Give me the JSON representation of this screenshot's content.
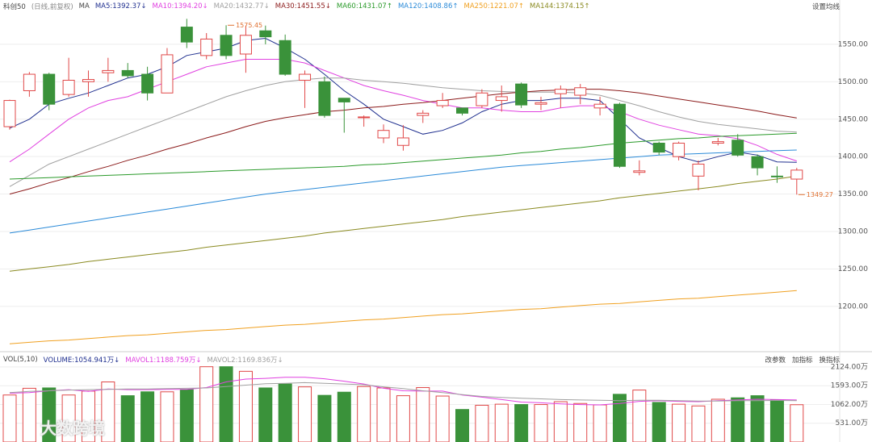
{
  "chart_data": [
    {
      "type": "candlestick",
      "title": "科创50",
      "subtitle": "(日线,前复权)",
      "ma_label": "MA",
      "settings_button": "设置均线",
      "open": [
        1440,
        1488,
        1510,
        1483,
        1500,
        1512,
        1515,
        1510,
        1485,
        1573,
        1535,
        1562,
        1537,
        1568,
        1555,
        1502,
        1500,
        1478,
        1452,
        1425,
        1415,
        1455,
        1468,
        1465,
        1468,
        1475,
        1497,
        1470,
        1484,
        1482,
        1465,
        1470,
        1379,
        1418,
        1400,
        1374,
        1418,
        1422,
        1400,
        1374,
        1370
      ],
      "high": [
        1476,
        1513,
        1512,
        1532,
        1515,
        1532,
        1525,
        1520,
        1545,
        1584,
        1565,
        1575.45,
        1575,
        1575,
        1563,
        1515,
        1507,
        1478,
        1455,
        1443,
        1442,
        1462,
        1485,
        1465,
        1490,
        1495,
        1499,
        1480,
        1495,
        1497,
        1480,
        1472,
        1395,
        1420,
        1420,
        1395,
        1425,
        1430,
        1403,
        1387,
        1385
      ],
      "low": [
        1436,
        1480,
        1462,
        1480,
        1480,
        1500,
        1505,
        1475,
        1485,
        1545,
        1530,
        1530,
        1512,
        1550,
        1508,
        1465,
        1452,
        1432,
        1440,
        1418,
        1408,
        1445,
        1465,
        1455,
        1465,
        1460,
        1465,
        1462,
        1465,
        1470,
        1455,
        1385,
        1375,
        1402,
        1395,
        1355,
        1415,
        1400,
        1375,
        1365,
        1349.27
      ],
      "close": [
        1475,
        1510,
        1470,
        1502,
        1503,
        1515,
        1508,
        1485,
        1536,
        1553,
        1557,
        1535,
        1562,
        1560,
        1510,
        1510,
        1455,
        1473,
        1453,
        1435,
        1425,
        1458,
        1475,
        1458,
        1485,
        1480,
        1469,
        1472,
        1490,
        1492,
        1470,
        1387,
        1381,
        1406,
        1418,
        1390,
        1420,
        1402,
        1385,
        1373,
        1382
      ],
      "up_color": "#e04848",
      "down_color": "#3a923a",
      "ylim": [
        1146,
        1593
      ],
      "yticks": [
        {
          "value": 1200,
          "label": "1200.00"
        },
        {
          "value": 1250,
          "label": "1250.00"
        },
        {
          "value": 1300,
          "label": "1300.00"
        },
        {
          "value": 1350,
          "label": "1350.00"
        },
        {
          "value": 1400,
          "label": "1400.00"
        },
        {
          "value": 1450,
          "label": "1450.00"
        },
        {
          "value": 1500,
          "label": "1500.00"
        },
        {
          "value": 1550,
          "label": "1550.00"
        }
      ],
      "grid": true,
      "annotations": [
        {
          "text": "1575.45",
          "value": 1575.45
        },
        {
          "text": "1349.27",
          "value": 1349.27
        }
      ],
      "series": [
        {
          "name": "MA5:1392.37",
          "trend": "↓",
          "color": "#1f2f8f",
          "values": [
            1438,
            1450,
            1470,
            1478,
            1485,
            1495,
            1505,
            1510,
            1520,
            1535,
            1540,
            1545,
            1555,
            1558,
            1545,
            1530,
            1510,
            1488,
            1470,
            1450,
            1440,
            1430,
            1435,
            1445,
            1460,
            1470,
            1475,
            1475,
            1478,
            1478,
            1475,
            1450,
            1425,
            1412,
            1400,
            1393,
            1400,
            1406,
            1402,
            1393,
            1392.37
          ]
        },
        {
          "name": "MA10:1394.20",
          "trend": "↓",
          "color": "#e040e0",
          "values": [
            1393,
            1410,
            1430,
            1450,
            1465,
            1475,
            1480,
            1490,
            1500,
            1510,
            1520,
            1525,
            1530,
            1530,
            1530,
            1525,
            1515,
            1505,
            1495,
            1488,
            1482,
            1475,
            1470,
            1465,
            1465,
            1462,
            1460,
            1460,
            1465,
            1468,
            1468,
            1460,
            1450,
            1442,
            1436,
            1430,
            1428,
            1424,
            1415,
            1403,
            1394.2
          ]
        },
        {
          "name": "MA20:1432.77",
          "trend": "↓",
          "color": "#a0a0a0",
          "values": [
            1360,
            1375,
            1390,
            1400,
            1410,
            1420,
            1430,
            1440,
            1450,
            1460,
            1470,
            1480,
            1488,
            1495,
            1500,
            1503,
            1505,
            1505,
            1502,
            1500,
            1498,
            1495,
            1492,
            1490,
            1488,
            1487,
            1486,
            1486,
            1486,
            1485,
            1482,
            1475,
            1468,
            1460,
            1453,
            1447,
            1443,
            1440,
            1437,
            1434,
            1432.77
          ]
        },
        {
          "name": "MA30:1451.55",
          "trend": "↓",
          "color": "#8b1a1a",
          "values": [
            1350,
            1357,
            1365,
            1372,
            1380,
            1387,
            1395,
            1402,
            1410,
            1417,
            1425,
            1432,
            1440,
            1447,
            1452,
            1456,
            1460,
            1462,
            1465,
            1467,
            1470,
            1472,
            1475,
            1478,
            1481,
            1484,
            1486,
            1488,
            1489,
            1490,
            1490,
            1488,
            1485,
            1481,
            1477,
            1473,
            1469,
            1465,
            1461,
            1456,
            1451.55
          ]
        },
        {
          "name": "MA60:1431.07",
          "trend": "↑",
          "color": "#2a9a2a",
          "values": [
            1370,
            1371,
            1372,
            1373,
            1374,
            1375,
            1376,
            1377,
            1378,
            1379,
            1380,
            1381,
            1382,
            1383,
            1384,
            1385,
            1386,
            1387,
            1389,
            1390,
            1392,
            1394,
            1396,
            1398,
            1400,
            1402,
            1405,
            1407,
            1410,
            1412,
            1415,
            1418,
            1420,
            1422,
            1424,
            1425,
            1427,
            1428,
            1429,
            1430,
            1431.07
          ]
        },
        {
          "name": "MA120:1408.86",
          "trend": "↑",
          "color": "#2a8ad8",
          "values": [
            1298,
            1302,
            1306,
            1310,
            1314,
            1318,
            1322,
            1326,
            1330,
            1334,
            1338,
            1342,
            1346,
            1350,
            1353,
            1356,
            1359,
            1362,
            1365,
            1368,
            1371,
            1374,
            1377,
            1380,
            1383,
            1386,
            1388,
            1390,
            1392,
            1394,
            1396,
            1398,
            1400,
            1402,
            1403,
            1404,
            1405,
            1406,
            1407,
            1408,
            1408.86
          ]
        },
        {
          "name": "MA250:1221.07",
          "trend": "↑",
          "color": "#f0a020",
          "values": [
            1150,
            1152,
            1154,
            1155,
            1157,
            1159,
            1161,
            1162,
            1164,
            1166,
            1168,
            1169,
            1171,
            1173,
            1175,
            1176,
            1178,
            1180,
            1182,
            1183,
            1185,
            1187,
            1189,
            1190,
            1192,
            1194,
            1196,
            1197,
            1199,
            1201,
            1203,
            1204,
            1206,
            1208,
            1210,
            1211,
            1213,
            1215,
            1217,
            1219,
            1221.07
          ]
        },
        {
          "name": "MA144:1374.15",
          "trend": "↑",
          "color": "#8a8a20",
          "values": [
            1247,
            1250,
            1253,
            1256,
            1260,
            1263,
            1266,
            1269,
            1272,
            1275,
            1279,
            1282,
            1285,
            1288,
            1291,
            1294,
            1298,
            1301,
            1304,
            1307,
            1310,
            1313,
            1316,
            1320,
            1323,
            1326,
            1329,
            1332,
            1335,
            1338,
            1341,
            1345,
            1348,
            1351,
            1354,
            1357,
            1360,
            1364,
            1367,
            1370,
            1374.15
          ]
        }
      ]
    },
    {
      "type": "bar",
      "title": "VOL(5,10)",
      "value_name": "VOLUME:1054.941万",
      "value_trend": "↓",
      "buttons": [
        "改参数",
        "加指标",
        "换指标"
      ],
      "values": [
        1330,
        1520,
        1530,
        1330,
        1440,
        1700,
        1310,
        1420,
        1420,
        1480,
        2130,
        2130,
        2000,
        1530,
        1640,
        1560,
        1320,
        1410,
        1570,
        1530,
        1310,
        1540,
        1300,
        920,
        1040,
        1070,
        1060,
        1060,
        1140,
        1090,
        1050,
        1350,
        1470,
        1120,
        1070,
        1020,
        1210,
        1250,
        1310,
        1190,
        1054.941
      ],
      "ylim": [
        0,
        2305
      ],
      "yticks": [
        {
          "value": 531,
          "label": "531.00万"
        },
        {
          "value": 1062,
          "label": "1062.00万"
        },
        {
          "value": 1593,
          "label": "1593.00万"
        },
        {
          "value": 2124,
          "label": "2124.00万"
        }
      ],
      "series": [
        {
          "name": "MAVOL1:1188.759万",
          "trend": "↓",
          "color": "#e040e0",
          "values": [
            1380,
            1400,
            1450,
            1480,
            1430,
            1500,
            1480,
            1480,
            1490,
            1490,
            1540,
            1700,
            1780,
            1800,
            1830,
            1830,
            1790,
            1720,
            1640,
            1520,
            1450,
            1440,
            1440,
            1330,
            1270,
            1200,
            1130,
            1110,
            1080,
            1060,
            1050,
            1090,
            1150,
            1170,
            1150,
            1140,
            1170,
            1190,
            1210,
            1200,
            1188.759
          ]
        },
        {
          "name": "MAVOL2:1169.836万",
          "trend": "↓",
          "color": "#a0a0a0",
          "values": [
            1400,
            1430,
            1450,
            1470,
            1480,
            1490,
            1500,
            1500,
            1510,
            1520,
            1530,
            1570,
            1610,
            1650,
            1660,
            1680,
            1660,
            1640,
            1620,
            1560,
            1510,
            1450,
            1400,
            1340,
            1290,
            1260,
            1240,
            1220,
            1200,
            1190,
            1180,
            1170,
            1180,
            1180,
            1170,
            1160,
            1160,
            1170,
            1170,
            1175,
            1169.836
          ]
        }
      ],
      "watermark": "大数跨境"
    }
  ]
}
